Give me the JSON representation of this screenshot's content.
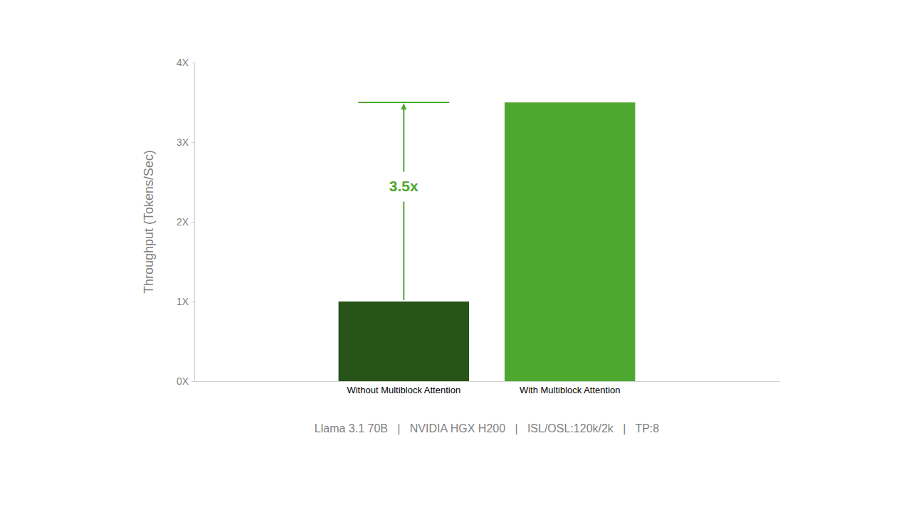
{
  "chart_data": {
    "type": "bar",
    "y_label": "Throughput (Tokens/Sec)",
    "categories": [
      "Without Multiblock Attention",
      "With Multiblock Attention"
    ],
    "values": [
      1,
      3.5
    ],
    "colors": [
      "#265419",
      "#4ea72e"
    ],
    "ylim": [
      0,
      4
    ],
    "yticks": [
      {
        "value": 0,
        "label": "0X"
      },
      {
        "value": 1,
        "label": "1X"
      },
      {
        "value": 2,
        "label": "2X"
      },
      {
        "value": 3,
        "label": "3X"
      },
      {
        "value": 4,
        "label": "4X"
      }
    ],
    "grid": false,
    "annotation": "3.5x",
    "subtitle": "Llama 3.1 70B   |   NVIDIA HGX H200   |   ISL/OSL:120k/2k   |   TP:8"
  }
}
